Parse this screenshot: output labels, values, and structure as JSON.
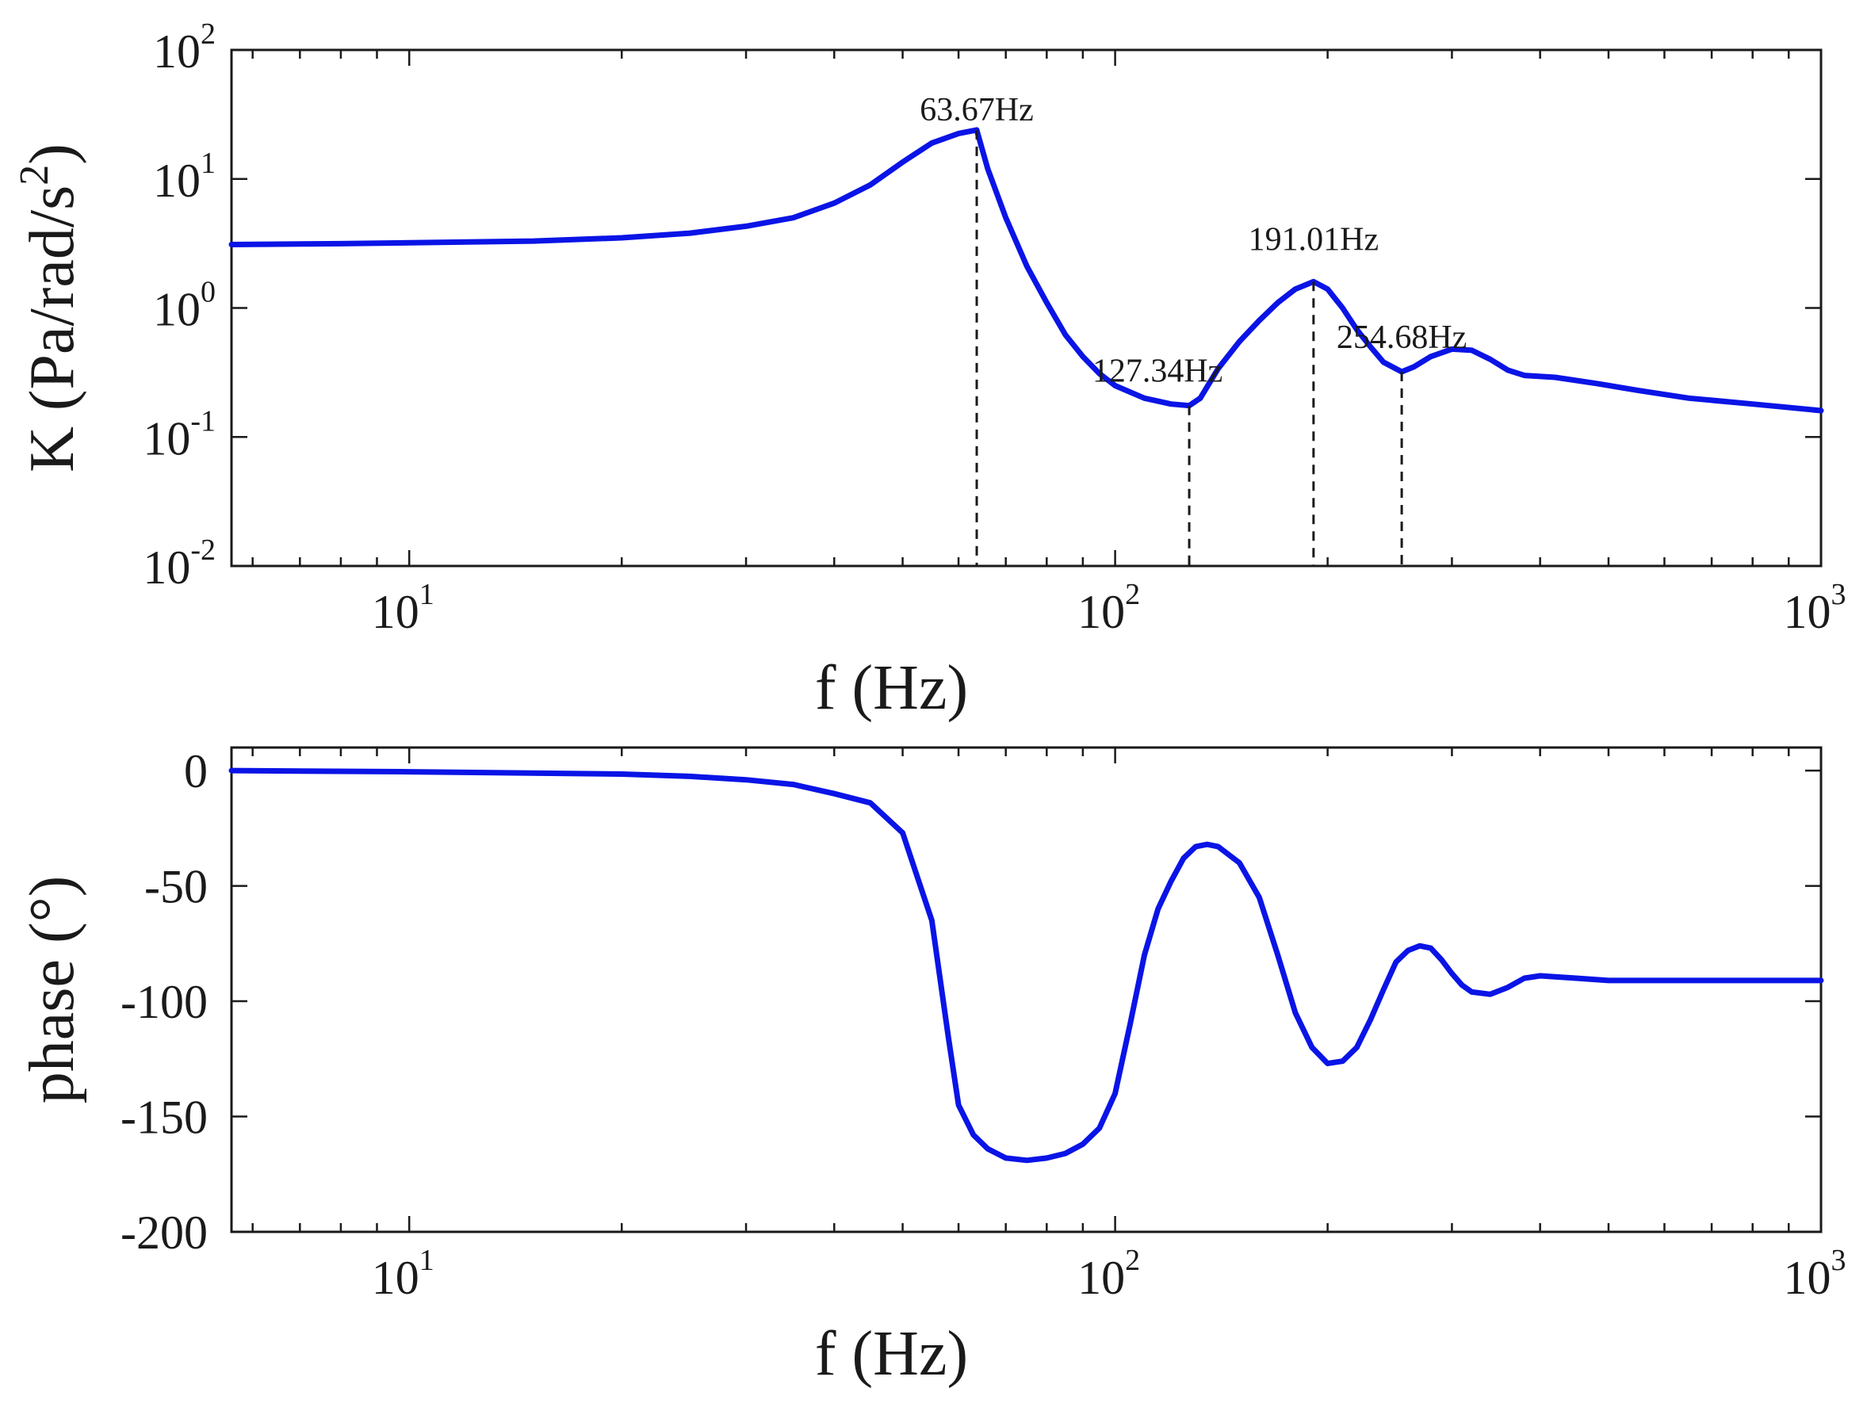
{
  "chart_data": [
    {
      "type": "line",
      "xlabel": "f (Hz)",
      "ylabel": "K (Pa/rad/s²)",
      "ylabel_base": "K (Pa/rad/s",
      "ylabel_sup": "2",
      "ylabel_close": ")",
      "xscale": "log",
      "yscale": "log",
      "xlim": [
        5.6,
        1000
      ],
      "ylim": [
        0.01,
        100
      ],
      "grid": false,
      "xticks": [
        {
          "base": "10",
          "exp": "1",
          "value": 10
        },
        {
          "base": "10",
          "exp": "2",
          "value": 100
        },
        {
          "base": "10",
          "exp": "3",
          "value": 1000
        }
      ],
      "yticks": [
        {
          "base": "10",
          "exp": "-2",
          "value": 0.01
        },
        {
          "base": "10",
          "exp": "-1",
          "value": 0.1
        },
        {
          "base": "10",
          "exp": "0",
          "value": 1
        },
        {
          "base": "10",
          "exp": "1",
          "value": 10
        },
        {
          "base": "10",
          "exp": "2",
          "value": 100
        }
      ],
      "series": [
        {
          "color": "#0a14e6",
          "x": [
            5.6,
            8,
            10,
            15,
            20,
            25,
            30,
            35,
            40,
            45,
            50,
            55,
            60,
            63.67,
            66,
            70,
            75,
            80,
            85,
            90,
            95,
            100,
            110,
            120,
            127.34,
            132,
            140,
            150,
            160,
            170,
            180,
            191.01,
            200,
            210,
            220,
            230,
            240,
            254.68,
            265,
            280,
            300,
            320,
            340,
            360,
            380,
            420,
            480,
            550,
            650,
            800,
            1000
          ],
          "y": [
            3.1,
            3.15,
            3.2,
            3.3,
            3.5,
            3.8,
            4.3,
            5.0,
            6.5,
            9.0,
            13.5,
            19.0,
            22.5,
            24.0,
            12.0,
            5.0,
            2.1,
            1.1,
            0.62,
            0.42,
            0.31,
            0.25,
            0.2,
            0.18,
            0.175,
            0.2,
            0.34,
            0.55,
            0.8,
            1.1,
            1.4,
            1.6,
            1.4,
            1.0,
            0.68,
            0.5,
            0.38,
            0.32,
            0.35,
            0.42,
            0.48,
            0.47,
            0.4,
            0.33,
            0.3,
            0.29,
            0.26,
            0.23,
            0.2,
            0.18,
            0.16
          ]
        }
      ],
      "annotations": [
        {
          "text": "63.67Hz",
          "x": 63.67
        },
        {
          "text": "127.34Hz",
          "x": 127.34
        },
        {
          "text": "191.01Hz",
          "x": 191.01
        },
        {
          "text": "254.68Hz",
          "x": 254.68
        }
      ]
    },
    {
      "type": "line",
      "xlabel": "f (Hz)",
      "ylabel": "phase (°)",
      "xscale": "log",
      "yscale": "linear",
      "xlim": [
        5.6,
        1000
      ],
      "ylim": [
        -200,
        10
      ],
      "grid": false,
      "xticks": [
        {
          "base": "10",
          "exp": "1",
          "value": 10
        },
        {
          "base": "10",
          "exp": "2",
          "value": 100
        },
        {
          "base": "10",
          "exp": "3",
          "value": 1000
        }
      ],
      "yticks": [
        {
          "label": "0",
          "value": 0
        },
        {
          "label": "-50",
          "value": -50
        },
        {
          "label": "-100",
          "value": -100
        },
        {
          "label": "-150",
          "value": -150
        },
        {
          "label": "-200",
          "value": -200
        }
      ],
      "series": [
        {
          "color": "#0a14e6",
          "x": [
            5.6,
            10,
            20,
            25,
            30,
            35,
            40,
            45,
            50,
            55,
            58,
            60,
            63,
            66,
            70,
            75,
            80,
            85,
            90,
            95,
            100,
            105,
            110,
            115,
            120,
            125,
            130,
            135,
            140,
            150,
            160,
            170,
            180,
            190,
            200,
            210,
            220,
            230,
            240,
            250,
            260,
            270,
            280,
            290,
            300,
            310,
            320,
            340,
            360,
            380,
            400,
            450,
            500,
            600,
            700,
            800,
            900,
            1000
          ],
          "y": [
            0,
            -0.5,
            -1.5,
            -2.5,
            -4,
            -6,
            -10,
            -14,
            -27,
            -65,
            -115,
            -145,
            -158,
            -164,
            -168,
            -169,
            -168,
            -166,
            -162,
            -155,
            -140,
            -110,
            -80,
            -60,
            -48,
            -38,
            -33,
            -32,
            -33,
            -40,
            -55,
            -80,
            -105,
            -120,
            -127,
            -126,
            -120,
            -108,
            -95,
            -83,
            -78,
            -76,
            -77,
            -82,
            -88,
            -93,
            -96,
            -97,
            -94,
            -90,
            -89,
            -90,
            -91,
            -91,
            -91,
            -91,
            -91,
            -91
          ]
        }
      ]
    }
  ]
}
